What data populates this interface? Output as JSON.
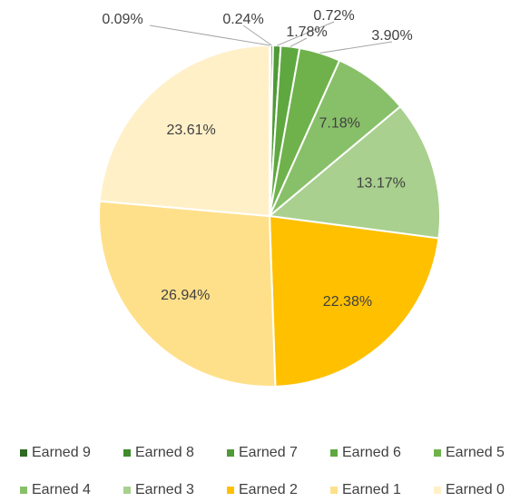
{
  "chart_data": {
    "type": "pie",
    "categories": [
      "Earned 9",
      "Earned 8",
      "Earned 7",
      "Earned 6",
      "Earned 5",
      "Earned 4",
      "Earned 3",
      "Earned 2",
      "Earned 1",
      "Earned 0"
    ],
    "values": [
      0.09,
      0.24,
      0.72,
      1.78,
      3.9,
      7.18,
      13.17,
      22.38,
      26.94,
      23.61
    ],
    "value_labels": [
      "0.09%",
      "0.24%",
      "0.72%",
      "1.78%",
      "3.90%",
      "7.18%",
      "13.17%",
      "22.38%",
      "26.94%",
      "23.61%"
    ],
    "colors": [
      "#2f6b22",
      "#3e8a2c",
      "#4f9a37",
      "#5fa840",
      "#6fb24c",
      "#88c06a",
      "#a9d08e",
      "#ffc000",
      "#ffe08a",
      "#fff0c8"
    ],
    "legend": "bottom"
  }
}
